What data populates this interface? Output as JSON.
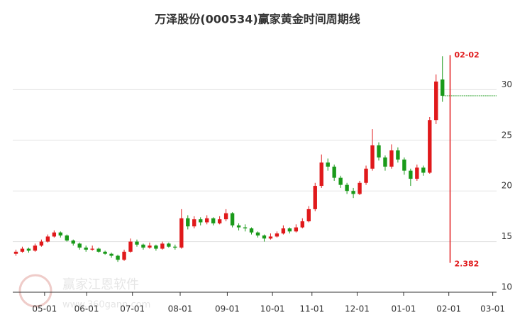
{
  "chart_data": {
    "type": "candlestick",
    "title": "万泽股份(000534)赢家黄金时间周期线",
    "watermark": {
      "name": "赢家江恩软件",
      "url": "www.360gann.com"
    },
    "up_color": "#e0191b",
    "down_color": "#1a9a1a",
    "ohlc": [
      [
        13.8,
        14.2,
        13.6,
        14.0
      ],
      [
        14.0,
        14.5,
        13.9,
        14.3
      ],
      [
        14.3,
        14.4,
        13.9,
        14.1
      ],
      [
        14.1,
        14.8,
        14.0,
        14.6
      ],
      [
        14.6,
        15.2,
        14.5,
        15.0
      ],
      [
        15.0,
        15.7,
        14.9,
        15.5
      ],
      [
        15.5,
        16.1,
        15.4,
        15.9
      ],
      [
        15.9,
        16.0,
        15.4,
        15.6
      ],
      [
        15.6,
        15.7,
        15.0,
        15.1
      ],
      [
        15.1,
        15.2,
        14.6,
        14.8
      ],
      [
        14.8,
        14.9,
        14.2,
        14.4
      ],
      [
        14.4,
        14.6,
        14.0,
        14.2
      ],
      [
        14.2,
        14.6,
        14.1,
        14.3
      ],
      [
        14.3,
        14.4,
        13.9,
        14.0
      ],
      [
        14.0,
        14.1,
        13.7,
        13.8
      ],
      [
        13.8,
        13.9,
        13.4,
        13.6
      ],
      [
        13.6,
        13.7,
        13.0,
        13.2
      ],
      [
        13.2,
        14.2,
        13.1,
        14.0
      ],
      [
        14.0,
        15.3,
        13.9,
        15.0
      ],
      [
        15.0,
        15.2,
        14.5,
        14.7
      ],
      [
        14.7,
        14.8,
        14.2,
        14.4
      ],
      [
        14.4,
        14.9,
        14.3,
        14.6
      ],
      [
        14.6,
        14.7,
        14.1,
        14.3
      ],
      [
        14.3,
        15.0,
        14.2,
        14.8
      ],
      [
        14.8,
        14.9,
        14.4,
        14.5
      ],
      [
        14.5,
        14.7,
        14.2,
        14.4
      ],
      [
        14.4,
        18.2,
        14.3,
        17.3
      ],
      [
        17.3,
        17.6,
        16.2,
        16.5
      ],
      [
        16.5,
        17.5,
        16.3,
        17.2
      ],
      [
        17.2,
        17.4,
        16.6,
        16.9
      ],
      [
        16.9,
        17.6,
        16.7,
        17.3
      ],
      [
        17.3,
        17.4,
        16.6,
        16.8
      ],
      [
        16.8,
        17.5,
        16.7,
        17.2
      ],
      [
        17.2,
        18.2,
        17.0,
        17.8
      ],
      [
        17.8,
        17.9,
        16.4,
        16.6
      ],
      [
        16.6,
        16.8,
        16.1,
        16.4
      ],
      [
        16.4,
        16.7,
        16.0,
        16.3
      ],
      [
        16.3,
        16.4,
        15.7,
        15.9
      ],
      [
        15.9,
        16.0,
        15.4,
        15.6
      ],
      [
        15.6,
        15.7,
        15.0,
        15.3
      ],
      [
        15.3,
        15.8,
        15.2,
        15.5
      ],
      [
        15.5,
        16.0,
        15.4,
        15.8
      ],
      [
        15.8,
        16.6,
        15.7,
        16.3
      ],
      [
        16.3,
        16.4,
        15.8,
        16.0
      ],
      [
        16.0,
        16.7,
        15.9,
        16.4
      ],
      [
        16.4,
        17.3,
        16.3,
        17.0
      ],
      [
        17.0,
        18.5,
        16.9,
        18.2
      ],
      [
        18.2,
        20.8,
        18.0,
        20.5
      ],
      [
        20.5,
        23.6,
        20.3,
        22.8
      ],
      [
        22.8,
        23.2,
        22.0,
        22.4
      ],
      [
        22.4,
        22.6,
        21.0,
        21.3
      ],
      [
        21.3,
        21.5,
        20.3,
        20.6
      ],
      [
        20.6,
        20.8,
        19.7,
        20.0
      ],
      [
        20.0,
        20.3,
        19.3,
        19.7
      ],
      [
        19.7,
        21.0,
        19.6,
        20.8
      ],
      [
        20.8,
        22.5,
        20.6,
        22.2
      ],
      [
        22.2,
        26.1,
        22.0,
        24.5
      ],
      [
        24.5,
        24.8,
        23.0,
        23.3
      ],
      [
        23.3,
        23.5,
        22.0,
        22.4
      ],
      [
        22.4,
        24.6,
        22.2,
        24.0
      ],
      [
        24.0,
        24.3,
        22.8,
        23.1
      ],
      [
        23.1,
        23.3,
        21.6,
        22.0
      ],
      [
        22.0,
        22.2,
        20.5,
        21.2
      ],
      [
        21.2,
        22.6,
        21.0,
        22.3
      ],
      [
        22.3,
        22.5,
        21.5,
        21.8
      ],
      [
        21.8,
        27.3,
        21.7,
        27.0
      ],
      [
        27.0,
        31.5,
        26.6,
        30.8
      ],
      [
        31.0,
        33.3,
        28.8,
        29.4
      ]
    ],
    "xlim": [
      -0.5,
      75.5
    ],
    "xticks": [
      {
        "value": 4.5,
        "label": "05-01"
      },
      {
        "value": 11.1,
        "label": "06-01"
      },
      {
        "value": 18.3,
        "label": "07-01"
      },
      {
        "value": 25.8,
        "label": "08-01"
      },
      {
        "value": 33.2,
        "label": "09-01"
      },
      {
        "value": 40.3,
        "label": "10-01"
      },
      {
        "value": 46.5,
        "label": "11-01"
      },
      {
        "value": 53.6,
        "label": "12-01"
      },
      {
        "value": 60.9,
        "label": "01-01"
      },
      {
        "value": 68.0,
        "label": "02-01"
      },
      {
        "value": 74.9,
        "label": "03-01"
      }
    ],
    "ylim": [
      10,
      35
    ],
    "yticks": [
      10,
      15,
      20,
      25,
      30
    ],
    "grid": true,
    "annotation": {
      "x": 68.2,
      "y_range": [
        12.9,
        33.4
      ],
      "color": "#e0191b",
      "label_top": "02-02",
      "label_bottom": "2.382"
    },
    "last_line_color": "#1a9a1a"
  }
}
